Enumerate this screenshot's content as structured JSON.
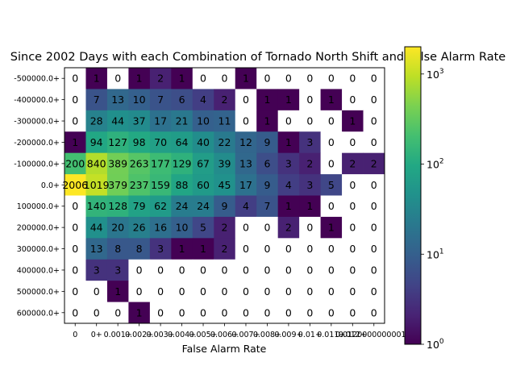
{
  "chart_data": {
    "type": "heatmap",
    "title": "Since 2002 Days with each Combination of Tornado North Shift and False Alarm Rate",
    "xlabel": "False Alarm Rate",
    "ylabel": "",
    "x_tick_labels": [
      "0",
      "0+",
      "0.001+",
      "0.002+",
      "0.003+",
      "0.004+",
      "0.005+",
      "0.006+",
      "0.007+",
      "0.008+",
      "0.009+",
      "0.01+",
      "0.011+",
      "0.012+",
      "0.0120000000001+"
    ],
    "y_tick_labels": [
      "-500000.0+",
      "-400000.0+",
      "-300000.0+",
      "-200000.0+",
      "-100000.0+",
      "0.0+",
      "100000.0+",
      "200000.0+",
      "300000.0+",
      "400000.0+",
      "500000.0+",
      "600000.0+"
    ],
    "values": [
      [
        0,
        1,
        0,
        1,
        2,
        1,
        0,
        0,
        1,
        0,
        0,
        0,
        0,
        0,
        0
      ],
      [
        0,
        7,
        13,
        10,
        7,
        6,
        4,
        2,
        0,
        1,
        1,
        0,
        1,
        0,
        0
      ],
      [
        0,
        28,
        44,
        37,
        17,
        21,
        10,
        11,
        0,
        1,
        0,
        0,
        0,
        1,
        0
      ],
      [
        1,
        94,
        127,
        98,
        70,
        64,
        40,
        22,
        12,
        9,
        1,
        3,
        0,
        0,
        0
      ],
      [
        200,
        840,
        389,
        263,
        177,
        129,
        67,
        39,
        13,
        6,
        3,
        2,
        0,
        2,
        2
      ],
      [
        2006,
        1019,
        379,
        237,
        159,
        88,
        60,
        45,
        17,
        9,
        4,
        3,
        5,
        0,
        0
      ],
      [
        0,
        140,
        128,
        79,
        62,
        24,
        24,
        9,
        4,
        7,
        1,
        1,
        0,
        0,
        0
      ],
      [
        0,
        44,
        20,
        26,
        16,
        10,
        5,
        2,
        0,
        0,
        2,
        0,
        1,
        0,
        0
      ],
      [
        0,
        13,
        8,
        8,
        3,
        1,
        1,
        2,
        0,
        0,
        0,
        0,
        0,
        0,
        0
      ],
      [
        0,
        3,
        3,
        0,
        0,
        0,
        0,
        0,
        0,
        0,
        0,
        0,
        0,
        0,
        0
      ],
      [
        0,
        0,
        1,
        0,
        0,
        0,
        0,
        0,
        0,
        0,
        0,
        0,
        0,
        0,
        0
      ],
      [
        0,
        0,
        0,
        1,
        0,
        0,
        0,
        0,
        0,
        0,
        0,
        0,
        0,
        0,
        0
      ]
    ],
    "colorscale": "viridis",
    "color_scale_type": "log",
    "colorbar_range": [
      1,
      2006
    ],
    "colorbar_ticks": [
      {
        "value": 1,
        "base": "10",
        "exp": "0"
      },
      {
        "value": 10,
        "base": "10",
        "exp": "1"
      },
      {
        "value": 100,
        "base": "10",
        "exp": "2"
      },
      {
        "value": 1000,
        "base": "10",
        "exp": "3"
      }
    ],
    "zero_cell_color": "#ffffff"
  }
}
